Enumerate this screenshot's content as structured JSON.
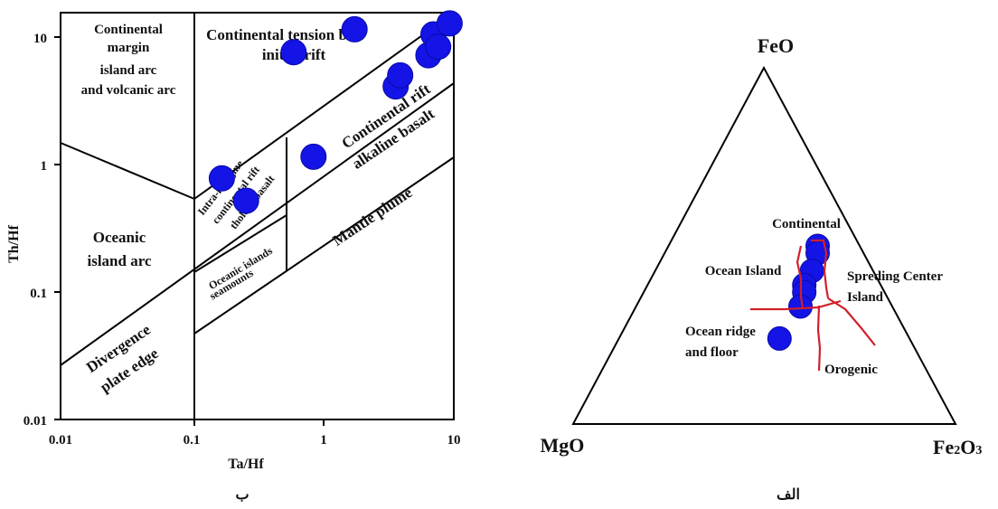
{
  "chart_data": [
    {
      "type": "scatter",
      "panel_label": "ب",
      "xlabel": "Ta/Hf",
      "ylabel": "Th/Hf",
      "x_scale": "log",
      "y_scale": "log",
      "xlim": [
        0.01,
        10
      ],
      "ylim": [
        0.01,
        15
      ],
      "x_ticks": [
        "0.01",
        "0.1",
        "1",
        "10"
      ],
      "y_ticks": [
        "10",
        "1",
        "0.1",
        "0.01"
      ],
      "field_labels": {
        "continental_margin": [
          "Continental",
          "margin",
          "island arc",
          "and volcanic arc"
        ],
        "continental_tension": [
          "Continental tension belt",
          "initial rift"
        ],
        "continental_rift": [
          "Continental rift",
          "alkaline basalt"
        ],
        "intra_margine": [
          "Intra-margine",
          "continental rift",
          "tholetic basalt"
        ],
        "oceanic_island_arc": [
          "Oceanic",
          "island arc"
        ],
        "mantle_plume": "Mantle plume",
        "oceanic_islands": [
          "Oceanic islands",
          "seamounts"
        ],
        "divergence": [
          "Divergence",
          "plate edge"
        ]
      },
      "points": [
        {
          "x": 0.17,
          "y": 0.78
        },
        {
          "x": 0.26,
          "y": 0.52
        },
        {
          "x": 0.6,
          "y": 7.6
        },
        {
          "x": 0.85,
          "y": 1.15
        },
        {
          "x": 1.75,
          "y": 11.5
        },
        {
          "x": 3.6,
          "y": 4.1
        },
        {
          "x": 3.9,
          "y": 5.0
        },
        {
          "x": 6.4,
          "y": 7.2
        },
        {
          "x": 7.0,
          "y": 10.5
        },
        {
          "x": 7.6,
          "y": 8.4
        },
        {
          "x": 9.3,
          "y": 12.8
        }
      ]
    },
    {
      "type": "scatter",
      "panel_label": "الف",
      "diagram": "ternary",
      "vertices": {
        "top": "FeO",
        "left": "MgO",
        "right_base": "Fe",
        "right_sub": "2",
        "right_mid": "O",
        "right_sub2": "3"
      },
      "field_labels": {
        "continental": "Continental",
        "ocean_island": "Ocean Island",
        "spreading": [
          "Spreding Center",
          "Island"
        ],
        "ocean_ridge": [
          "Ocean ridge",
          "and floor"
        ],
        "orogenic": "Orogenic"
      },
      "boundary_color": "#d0202a",
      "points": [
        {
          "FeO": 0.5,
          "Fe2O3": 0.39,
          "MgO": 0.11
        },
        {
          "FeO": 0.48,
          "Fe2O3": 0.4,
          "MgO": 0.12
        },
        {
          "FeO": 0.43,
          "Fe2O3": 0.41,
          "MgO": 0.16
        },
        {
          "FeO": 0.39,
          "Fe2O3": 0.41,
          "MgO": 0.2
        },
        {
          "FeO": 0.37,
          "Fe2O3": 0.42,
          "MgO": 0.21
        },
        {
          "FeO": 0.33,
          "Fe2O3": 0.43,
          "MgO": 0.24
        },
        {
          "FeO": 0.24,
          "Fe2O3": 0.42,
          "MgO": 0.34
        }
      ]
    }
  ]
}
